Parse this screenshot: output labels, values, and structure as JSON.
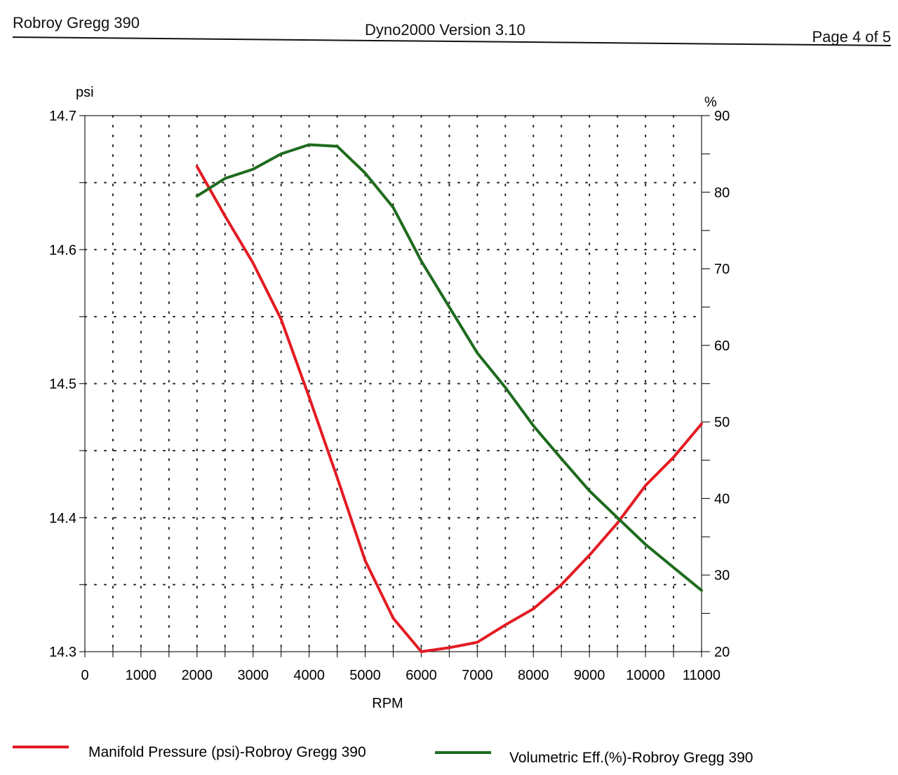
{
  "header": {
    "left": "Robroy Gregg 390",
    "center": "Dyno2000  Version 3.10",
    "right": "Page 4 of 5"
  },
  "chart_data": {
    "type": "line",
    "x": {
      "label": "RPM",
      "ticks": [
        0,
        1000,
        2000,
        3000,
        4000,
        5000,
        6000,
        7000,
        8000,
        9000,
        10000,
        11000
      ],
      "lim": [
        0,
        11000
      ]
    },
    "y_left": {
      "unit": "psi",
      "ticks": [
        14.3,
        14.4,
        14.5,
        14.6,
        14.7
      ],
      "lim": [
        14.3,
        14.7
      ]
    },
    "y_right": {
      "unit": "%",
      "ticks": [
        20,
        30,
        40,
        50,
        60,
        70,
        80,
        90
      ],
      "lim": [
        20,
        90
      ]
    },
    "grid": "dotted",
    "series": [
      {
        "name": "Manifold Pressure (psi)-Robroy Gregg 390",
        "axis": "left",
        "color": "#e31b23",
        "x": [
          2000,
          2500,
          3000,
          3500,
          4000,
          4500,
          5000,
          5500,
          6000,
          6500,
          7000,
          7500,
          8000,
          8500,
          9000,
          9500,
          10000,
          10500,
          11000
        ],
        "y": [
          14.662,
          14.625,
          14.59,
          14.548,
          14.49,
          14.43,
          14.368,
          14.325,
          14.3,
          14.303,
          14.307,
          14.32,
          14.332,
          14.35,
          14.372,
          14.396,
          14.424,
          14.445,
          14.47
        ]
      },
      {
        "name": "Volumetric Eff.(%)-Robroy Gregg 390",
        "axis": "right",
        "color": "#1e6b1e",
        "x": [
          2000,
          2500,
          3000,
          3500,
          4000,
          4500,
          5000,
          5500,
          6000,
          6500,
          7000,
          7500,
          8000,
          8500,
          9000,
          9500,
          10000,
          10500,
          11000
        ],
        "y": [
          79.5,
          81.8,
          83,
          85,
          86.2,
          86,
          82.5,
          78,
          71,
          65,
          59,
          54.5,
          49.5,
          45.2,
          41,
          37.5,
          34,
          31,
          28
        ]
      }
    ],
    "legend_position": "bottom"
  }
}
